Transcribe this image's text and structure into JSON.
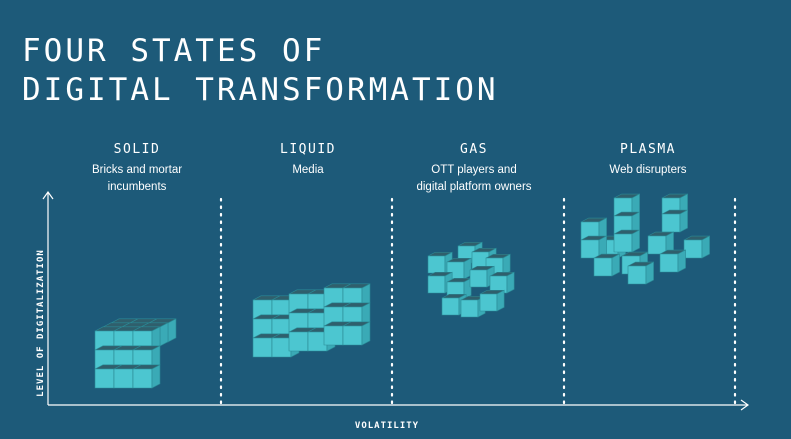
{
  "title": {
    "line1": "FOUR STATES OF",
    "line2": "DIGITAL TRANSFORMATION"
  },
  "states": [
    {
      "name": "SOLID",
      "description": "Bricks and mortar\nincumbents"
    },
    {
      "name": "LIQUID",
      "description": "Media"
    },
    {
      "name": "GAS",
      "description": "OTT players and\ndigital platform owners"
    },
    {
      "name": "PLASMA",
      "description": "Web disrupters"
    }
  ],
  "axes": {
    "y_label": "LEVEL OF DIGITALIZATION",
    "x_label": "VOLATILITY"
  },
  "colors": {
    "background": "#1d5a79",
    "cube_top": "#2f5f6c",
    "cube_front": "#4cc6d0",
    "cube_side": "#3aaab6",
    "axis": "#ffffff"
  }
}
